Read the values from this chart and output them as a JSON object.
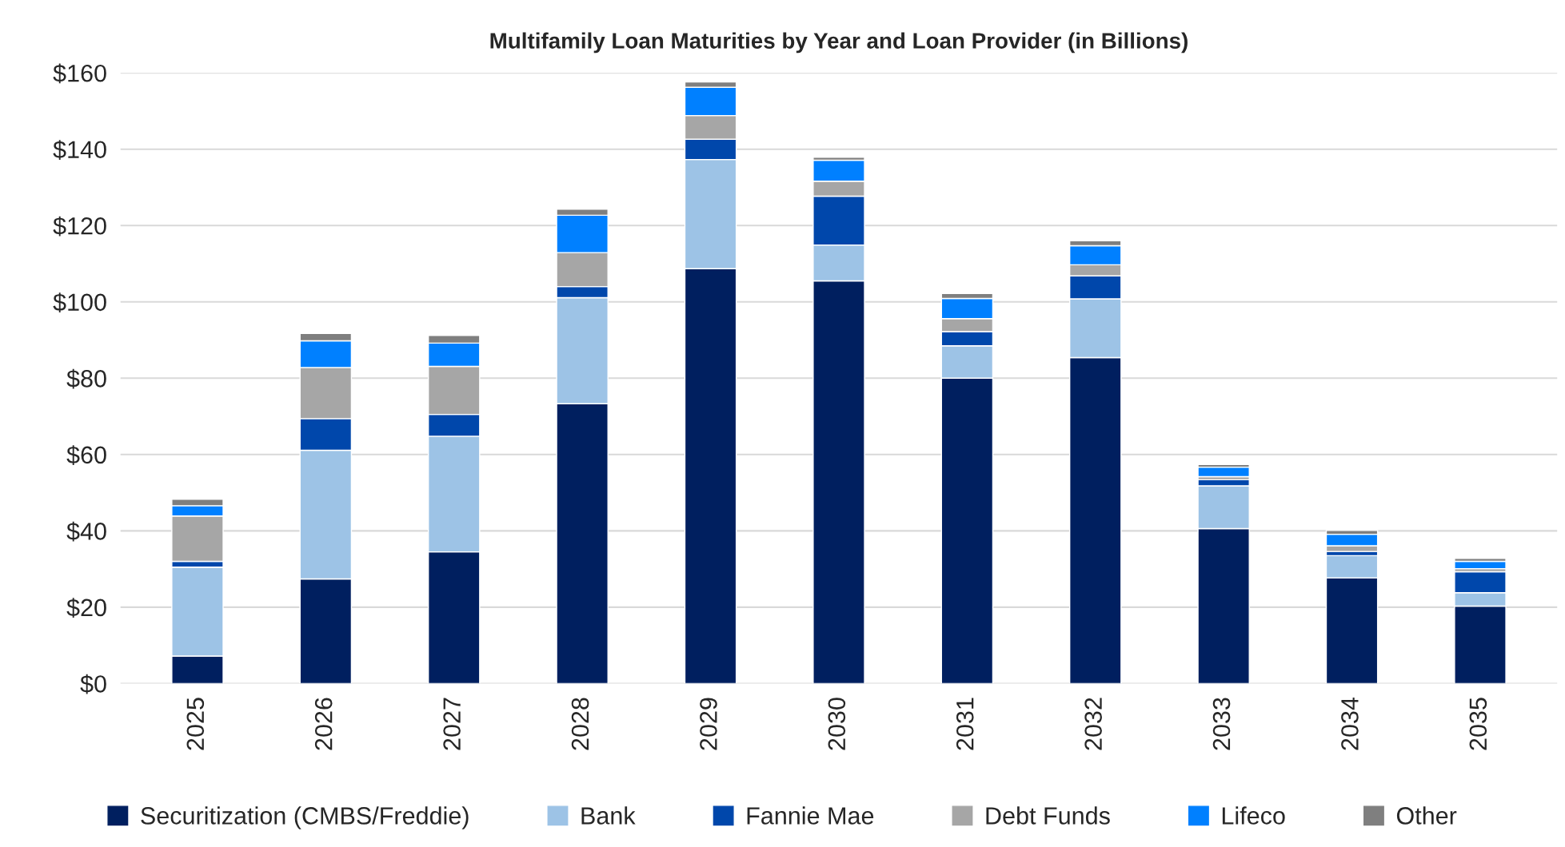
{
  "chart_data": {
    "type": "bar",
    "title": "Multifamily Loan Maturities by Year and Loan Provider (in Billions)",
    "categories": [
      "2025",
      "2026",
      "2027",
      "2028",
      "2029",
      "2030",
      "2031",
      "2032",
      "2033",
      "2034",
      "2035"
    ],
    "stacked": true,
    "series": [
      {
        "name": "Securitization (CMBS/Freddie)",
        "color": "#001f5f",
        "values": [
          7.2,
          27.4,
          34.5,
          73.3,
          108.7,
          105.5,
          80.0,
          85.4,
          40.6,
          27.7,
          20.3
        ]
      },
      {
        "name": "Bank",
        "color": "#9dc3e6",
        "values": [
          23.3,
          33.7,
          30.3,
          27.8,
          28.6,
          9.4,
          8.5,
          15.4,
          11.2,
          5.8,
          3.5
        ]
      },
      {
        "name": "Fannie Mae",
        "color": "#0047ab",
        "values": [
          1.5,
          8.3,
          5.7,
          2.9,
          5.3,
          12.8,
          3.7,
          6.0,
          1.6,
          1.1,
          5.5
        ]
      },
      {
        "name": "Debt Funds",
        "color": "#a6a6a6",
        "values": [
          11.9,
          13.4,
          12.6,
          8.9,
          6.2,
          3.9,
          3.4,
          2.9,
          0.8,
          1.5,
          0.8
        ]
      },
      {
        "name": "Lifeco",
        "color": "#0080ff",
        "values": [
          2.7,
          7.0,
          6.1,
          9.8,
          7.4,
          5.5,
          5.3,
          5.0,
          2.5,
          3.0,
          1.9
        ]
      },
      {
        "name": "Other",
        "color": "#7f7f7f",
        "values": [
          1.7,
          1.9,
          2.0,
          1.6,
          1.4,
          0.8,
          1.3,
          1.3,
          0.7,
          1.0,
          0.8
        ]
      }
    ],
    "ylim": [
      0,
      160
    ],
    "yticks": [
      {
        "value": 0,
        "label": "$0"
      },
      {
        "value": 20,
        "label": "$20"
      },
      {
        "value": 40,
        "label": "$40"
      },
      {
        "value": 60,
        "label": "$60"
      },
      {
        "value": 80,
        "label": "$80"
      },
      {
        "value": 100,
        "label": "$100"
      },
      {
        "value": 120,
        "label": "$120"
      },
      {
        "value": 140,
        "label": "$140"
      },
      {
        "value": 160,
        "label": "$160"
      }
    ],
    "grid": "y",
    "legend": "bottom"
  }
}
